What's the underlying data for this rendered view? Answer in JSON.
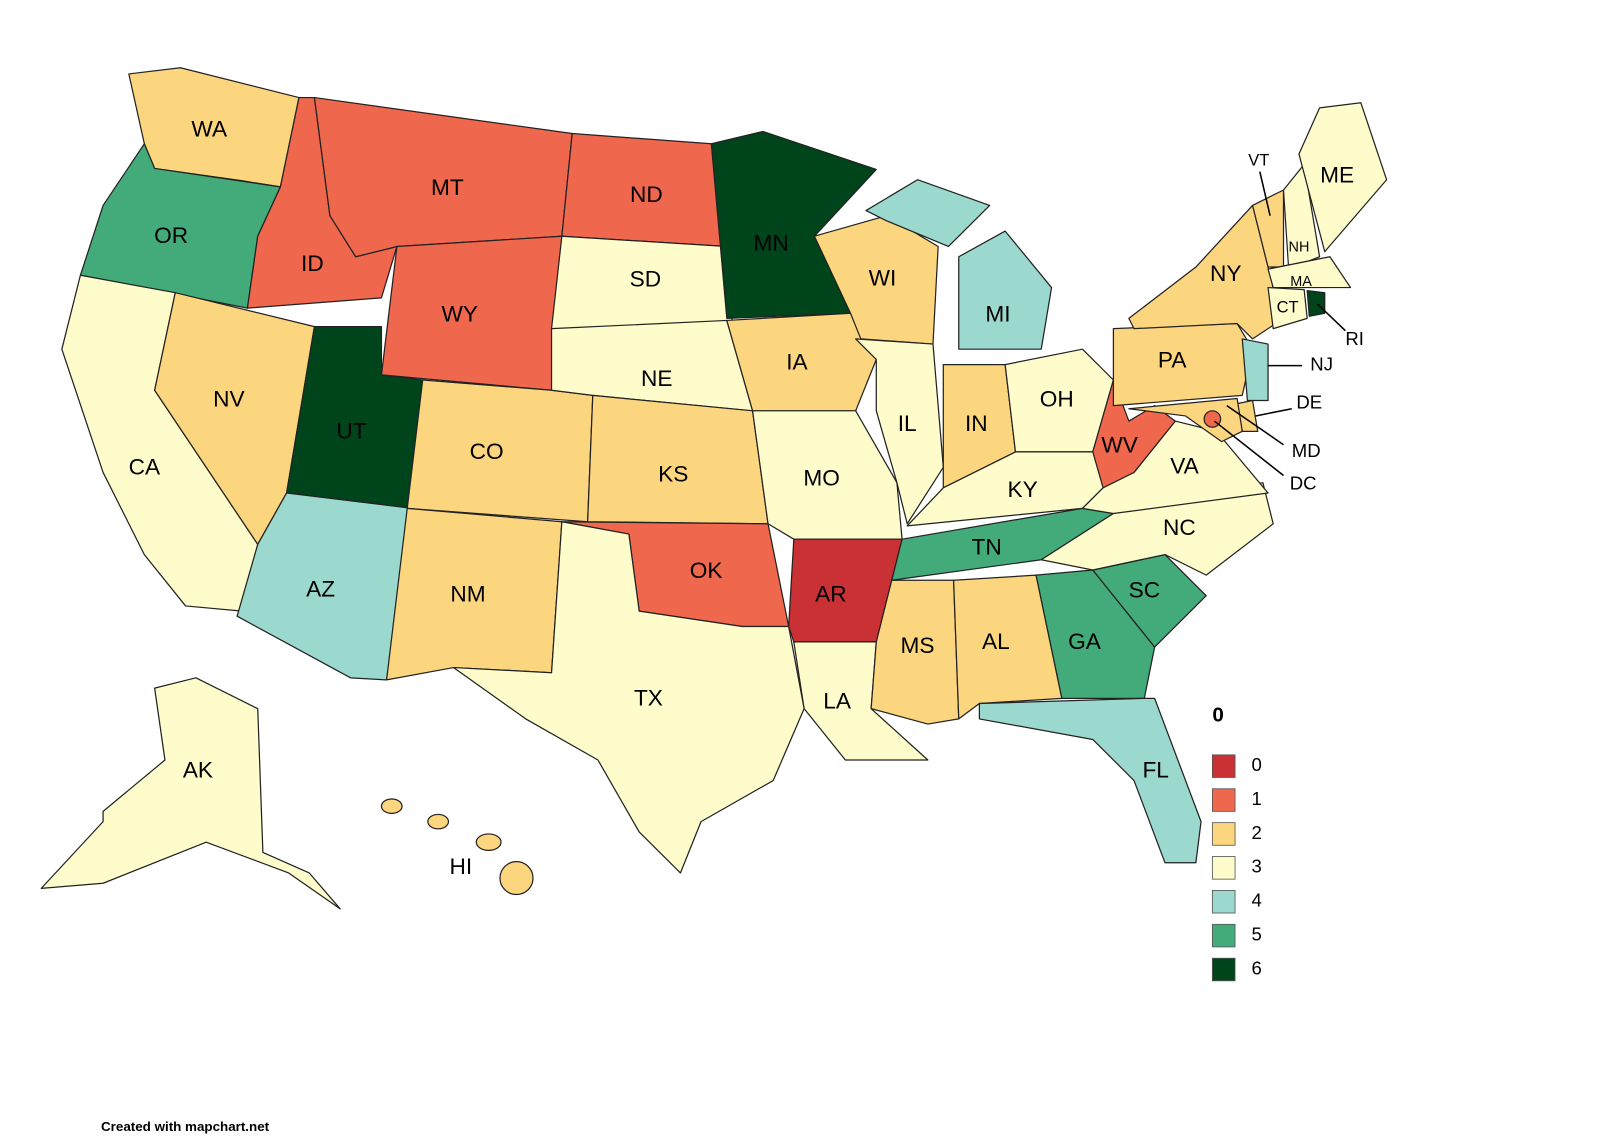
{
  "legend": {
    "title": "0",
    "items": [
      {
        "value": 0,
        "color": "#c93135"
      },
      {
        "value": 1,
        "color": "#ef674c"
      },
      {
        "value": 2,
        "color": "#fcd57f"
      },
      {
        "value": 3,
        "color": "#fefccb"
      },
      {
        "value": 4,
        "color": "#9bd8cd"
      },
      {
        "value": 5,
        "color": "#43aa7a"
      },
      {
        "value": 6,
        "color": "#00441b"
      }
    ]
  },
  "states": [
    {
      "label": "WA",
      "value": 2
    },
    {
      "label": "OR",
      "value": 5
    },
    {
      "label": "CA",
      "value": 3
    },
    {
      "label": "NV",
      "value": 2
    },
    {
      "label": "ID",
      "value": 1
    },
    {
      "label": "MT",
      "value": 1
    },
    {
      "label": "WY",
      "value": 1
    },
    {
      "label": "UT",
      "value": 6
    },
    {
      "label": "AZ",
      "value": 4
    },
    {
      "label": "CO",
      "value": 2
    },
    {
      "label": "NM",
      "value": 2
    },
    {
      "label": "ND",
      "value": 1
    },
    {
      "label": "SD",
      "value": 3
    },
    {
      "label": "NE",
      "value": 3
    },
    {
      "label": "KS",
      "value": 2
    },
    {
      "label": "OK",
      "value": 1
    },
    {
      "label": "TX",
      "value": 3
    },
    {
      "label": "MN",
      "value": 6
    },
    {
      "label": "IA",
      "value": 2
    },
    {
      "label": "MO",
      "value": 3
    },
    {
      "label": "AR",
      "value": 0
    },
    {
      "label": "LA",
      "value": 3
    },
    {
      "label": "WI",
      "value": 2
    },
    {
      "label": "IL",
      "value": 3
    },
    {
      "label": "MI",
      "value": 4
    },
    {
      "label": "IN",
      "value": 2
    },
    {
      "label": "OH",
      "value": 3
    },
    {
      "label": "KY",
      "value": 3
    },
    {
      "label": "TN",
      "value": 5
    },
    {
      "label": "MS",
      "value": 2
    },
    {
      "label": "AL",
      "value": 2
    },
    {
      "label": "GA",
      "value": 5
    },
    {
      "label": "FL",
      "value": 4
    },
    {
      "label": "SC",
      "value": 5
    },
    {
      "label": "NC",
      "value": 3
    },
    {
      "label": "VA",
      "value": 3
    },
    {
      "label": "WV",
      "value": 1
    },
    {
      "label": "PA",
      "value": 2
    },
    {
      "label": "NY",
      "value": 2
    },
    {
      "label": "NJ",
      "value": 4
    },
    {
      "label": "DE",
      "value": 2
    },
    {
      "label": "MD",
      "value": 2
    },
    {
      "label": "DC",
      "value": 1
    },
    {
      "label": "VT",
      "value": 2
    },
    {
      "label": "NH",
      "value": 3
    },
    {
      "label": "ME",
      "value": 3
    },
    {
      "label": "MA",
      "value": 3
    },
    {
      "label": "CT",
      "value": 3
    },
    {
      "label": "RI",
      "value": 6
    },
    {
      "label": "AK",
      "value": 3
    },
    {
      "label": "HI",
      "value": 2
    }
  ],
  "footer": "Created with mapchart.net"
}
